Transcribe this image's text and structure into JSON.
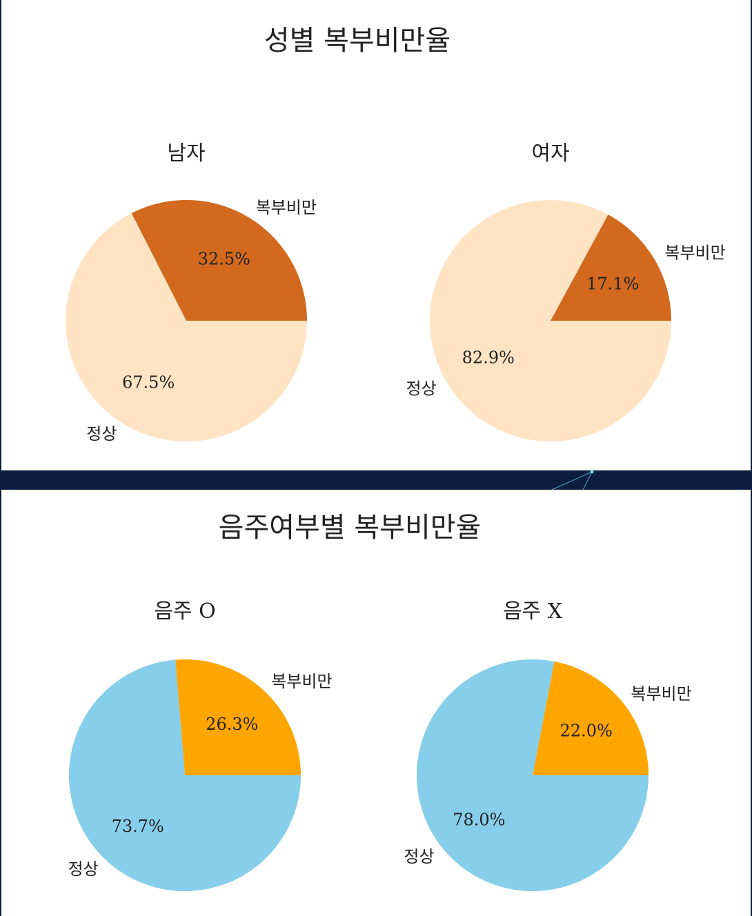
{
  "figures": [
    {
      "title": "성별 복부비만율",
      "charts": [
        {
          "subtitle": "남자"
        },
        {
          "subtitle": "여자"
        }
      ]
    },
    {
      "title": "음주여부별 복부비만율",
      "charts": [
        {
          "subtitle": "음주 O"
        },
        {
          "subtitle": "음주 X"
        }
      ]
    }
  ],
  "chart_data": [
    {
      "type": "pie",
      "title": "남자",
      "labels": [
        "복부비만",
        "정상"
      ],
      "values": [
        32.5,
        67.5
      ],
      "value_labels": [
        "32.5%",
        "67.5%"
      ],
      "colors": [
        "#d2691e",
        "#ffe4c4"
      ]
    },
    {
      "type": "pie",
      "title": "여자",
      "labels": [
        "복부비만",
        "정상"
      ],
      "values": [
        17.1,
        82.9
      ],
      "value_labels": [
        "17.1%",
        "82.9%"
      ],
      "colors": [
        "#d2691e",
        "#ffe4c4"
      ]
    },
    {
      "type": "pie",
      "title": "음주 O",
      "labels": [
        "복부비만",
        "정상"
      ],
      "values": [
        26.3,
        73.7
      ],
      "value_labels": [
        "26.3%",
        "73.7%"
      ],
      "colors": [
        "#ffa500",
        "#87ceeb"
      ]
    },
    {
      "type": "pie",
      "title": "음주 X",
      "labels": [
        "복부비만",
        "정상"
      ],
      "values": [
        22.0,
        78.0
      ],
      "value_labels": [
        "22.0%",
        "78.0%"
      ],
      "colors": [
        "#ffa500",
        "#87ceeb"
      ]
    }
  ]
}
